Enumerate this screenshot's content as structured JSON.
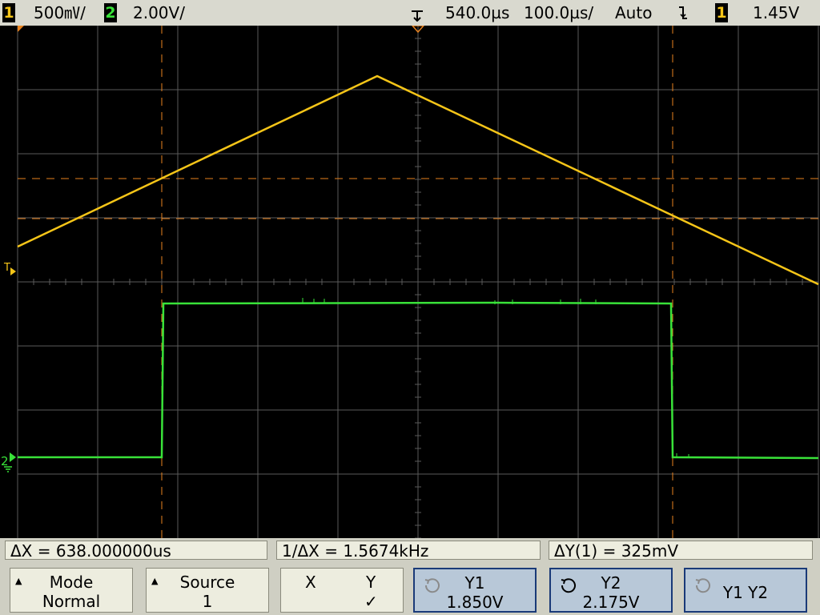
{
  "topbar": {
    "ch1_number": "1",
    "ch1_scale": "500㎷/",
    "ch2_number": "2",
    "ch2_scale": "2.00V/",
    "delay": "540.0µs",
    "timebase": "100.0µs/",
    "trigger_mode": "Auto",
    "trigger_source": "1",
    "trigger_level": "1.45V"
  },
  "markers": {
    "trigger_level_marker": "T",
    "ch2_ground_marker": "2"
  },
  "colors": {
    "ch1": "#f5c518",
    "ch2": "#39e239",
    "cursor": "#e8821e",
    "grid": "#5a5a5a",
    "selected_softkey_border": "#1a3a78"
  },
  "measurements": {
    "delta_x": "ΔX = 638.000000us",
    "inverse_delta_x": "1/ΔX = 1.5674kHz",
    "delta_y": "ΔY(1) = 325mV"
  },
  "softkeys": {
    "mode_label": "Mode",
    "mode_value": "Normal",
    "source_label": "Source",
    "source_value": "1",
    "x_label": "X",
    "y_label": "Y",
    "y_check": "✓",
    "y1_label": "Y1",
    "y1_value": "1.850V",
    "y2_label": "Y2",
    "y2_value": "2.175V",
    "y1y2_label": "Y1 Y2",
    "icons": [
      "up-arrow-icon",
      "knob-rotate-icon"
    ]
  }
}
